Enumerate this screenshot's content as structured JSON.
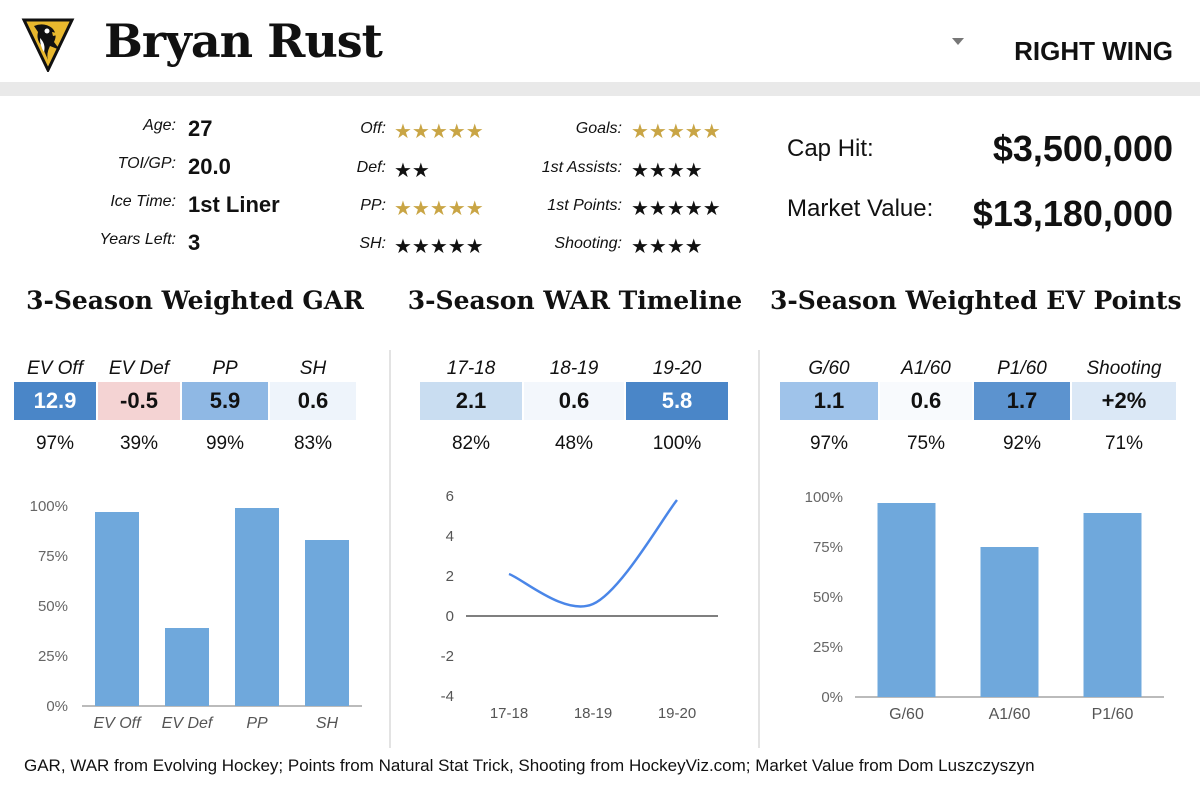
{
  "header": {
    "player_name": "Bryan Rust",
    "position": "RIGHT WING",
    "logo": "penguins-logo",
    "dropdown_icon": "chevron-down-icon"
  },
  "bio": [
    {
      "label": "Age:",
      "value": "27"
    },
    {
      "label": "TOI/GP:",
      "value": "20.0"
    },
    {
      "label": "Ice Time:",
      "value": "1st Liner"
    },
    {
      "label": "Years Left:",
      "value": "3"
    }
  ],
  "ratings_left": [
    {
      "label": "Off:",
      "stars": "★★★★★",
      "color": "gold"
    },
    {
      "label": "Def:",
      "stars": "★★",
      "color": "black"
    },
    {
      "label": "PP:",
      "stars": "★★★★★",
      "color": "gold"
    },
    {
      "label": "SH:",
      "stars": "★★★★★",
      "color": "black"
    }
  ],
  "ratings_right": [
    {
      "label": "Goals:",
      "stars": "★★★★★",
      "color": "gold"
    },
    {
      "label": "1st Assists:",
      "stars": "★★★★",
      "color": "black"
    },
    {
      "label": "1st Points:",
      "stars": "★★★★★",
      "color": "black"
    },
    {
      "label": "Shooting:",
      "stars": "★★★★",
      "color": "black"
    }
  ],
  "contract": {
    "cap_hit_label": "Cap Hit:",
    "cap_hit_value": "$3,500,000",
    "market_value_label": "Market Value:",
    "market_value_value": "$13,180,000"
  },
  "sections": {
    "gar_title": "3-Season Weighted GAR",
    "war_title": "3-Season WAR Timeline",
    "ev_title": "3-Season Weighted EV Points"
  },
  "gar_table": [
    {
      "head": "EV Off",
      "value": "12.9",
      "pct": "97%",
      "bg": "#4a86c8",
      "fg": "#ffffff"
    },
    {
      "head": "EV Def",
      "value": "-0.5",
      "pct": "39%",
      "bg": "#f4d3d3",
      "fg": "#111111"
    },
    {
      "head": "PP",
      "value": "5.9",
      "pct": "99%",
      "bg": "#8fb8e4",
      "fg": "#111111"
    },
    {
      "head": "SH",
      "value": "0.6",
      "pct": "83%",
      "bg": "#eef4fb",
      "fg": "#111111"
    }
  ],
  "war_table": [
    {
      "head": "17-18",
      "value": "2.1",
      "pct": "82%",
      "bg": "#c9ddf1",
      "fg": "#111111"
    },
    {
      "head": "18-19",
      "value": "0.6",
      "pct": "48%",
      "bg": "#f3f7fc",
      "fg": "#111111"
    },
    {
      "head": "19-20",
      "value": "5.8",
      "pct": "100%",
      "bg": "#4a86c8",
      "fg": "#ffffff"
    }
  ],
  "ev_table": [
    {
      "head": "G/60",
      "value": "1.1",
      "pct": "97%",
      "bg": "#9fc3ea",
      "fg": "#111111"
    },
    {
      "head": "A1/60",
      "value": "0.6",
      "pct": "75%",
      "bg": "#f8fafd",
      "fg": "#111111"
    },
    {
      "head": "P1/60",
      "value": "1.7",
      "pct": "92%",
      "bg": "#5c93cf",
      "fg": "#111111"
    },
    {
      "head": "Shooting",
      "value": "+2%",
      "pct": "71%",
      "bg": "#dbe8f6",
      "fg": "#111111"
    }
  ],
  "chart_data": [
    {
      "type": "bar",
      "title": "3-Season Weighted GAR",
      "categories": [
        "EV Off",
        "EV Def",
        "PP",
        "SH"
      ],
      "values": [
        97,
        39,
        99,
        83
      ],
      "yticks": [
        "0%",
        "25%",
        "50%",
        "75%",
        "100%"
      ],
      "ylim": [
        0,
        100
      ],
      "color": "#6fa8dc"
    },
    {
      "type": "line",
      "title": "3-Season WAR Timeline",
      "categories": [
        "17-18",
        "18-19",
        "19-20"
      ],
      "values": [
        2.1,
        0.6,
        5.8
      ],
      "yticks": [
        "-4",
        "-2",
        "0",
        "2",
        "4",
        "6"
      ],
      "ylim": [
        -4,
        6
      ],
      "color": "#4a86e8"
    },
    {
      "type": "bar",
      "title": "3-Season Weighted EV Points",
      "categories": [
        "G/60",
        "A1/60",
        "P1/60"
      ],
      "values": [
        97,
        75,
        92
      ],
      "yticks": [
        "0%",
        "25%",
        "50%",
        "75%",
        "100%"
      ],
      "ylim": [
        0,
        100
      ],
      "color": "#6fa8dc"
    }
  ],
  "footer": {
    "source": "GAR, WAR from Evolving Hockey; Points from Natural Stat Trick, Shooting from HockeyViz.com; Market Value from Dom Luszczyszyn"
  }
}
